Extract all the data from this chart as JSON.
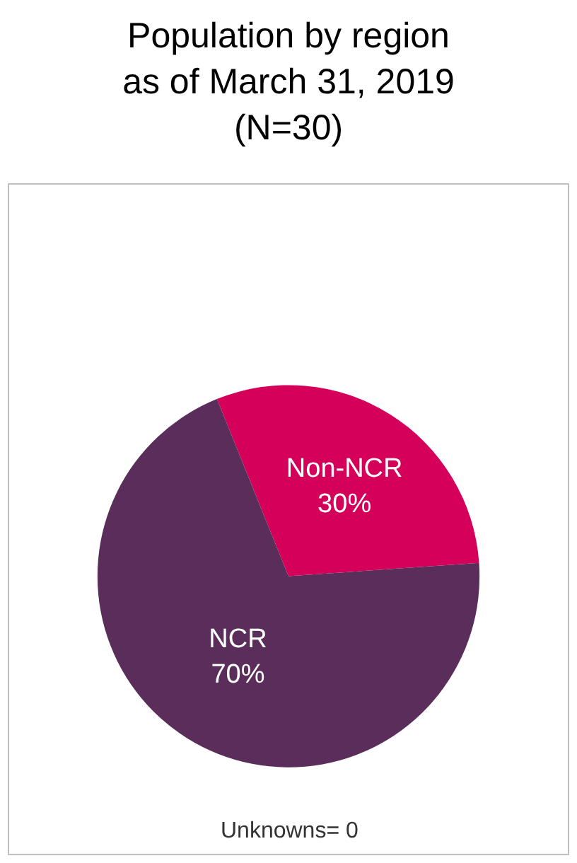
{
  "chart_data": {
    "type": "pie",
    "title": "Population by region\nas of March 31, 2019\n(N=30)",
    "categories": [
      "Non-NCR",
      "NCR"
    ],
    "values": [
      30,
      70
    ],
    "value_labels": [
      "30%",
      "70%"
    ],
    "colors": [
      "#d4005a",
      "#5b2d5a"
    ],
    "legend": false,
    "annotations": [
      "Unknowns= 0"
    ]
  }
}
